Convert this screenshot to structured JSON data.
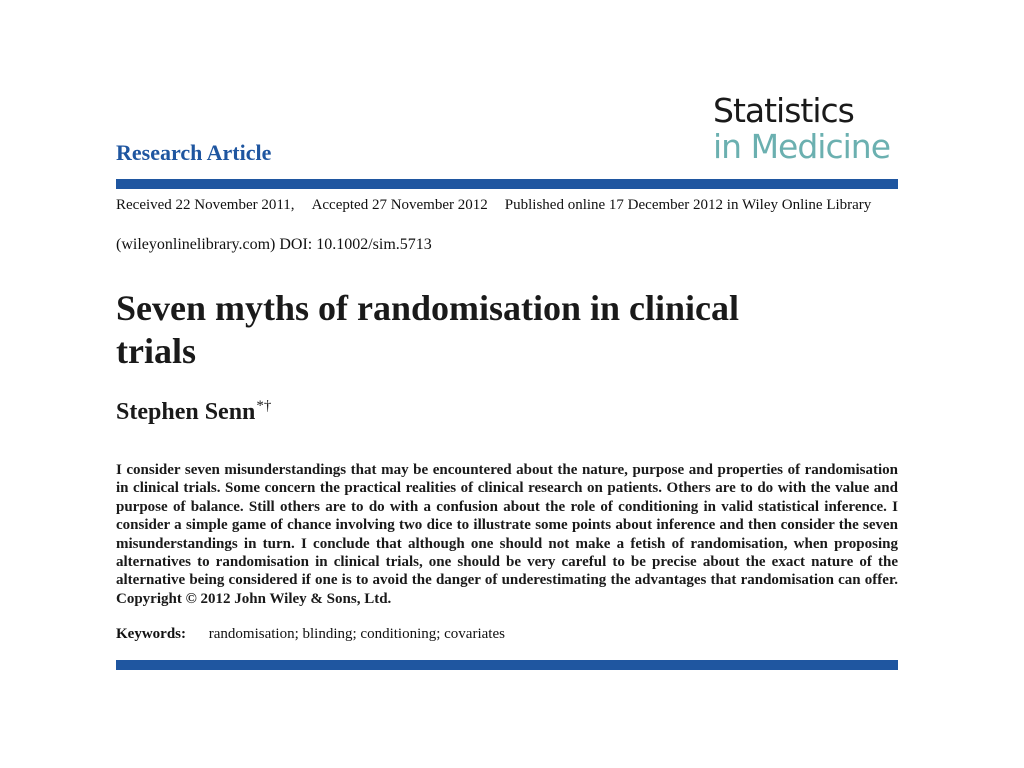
{
  "journal": {
    "logo_line1": "Statistics",
    "logo_line2": "in Medicine",
    "logo_color_dark": "#1a1a1a",
    "logo_color_teal": "#6bb0b0"
  },
  "header": {
    "article_type": "Research Article",
    "accent_color": "#1f56a0"
  },
  "publication": {
    "received": "Received 22 November 2011,",
    "accepted": "Accepted 27 November 2012",
    "published": "Published online 17 December 2012 in Wiley Online Library",
    "doi_line": "(wileyonlinelibrary.com) DOI: 10.1002/sim.5713"
  },
  "article": {
    "title": "Seven myths of randomisation in clinical trials",
    "author": "Stephen Senn",
    "author_marks": "*†",
    "abstract": "I consider seven misunderstandings that may be encountered about the nature, purpose and properties of randomisation in clinical trials. Some concern the practical realities of clinical research on patients. Others are to do with the value and purpose of balance. Still others are to do with a confusion about the role of conditioning in valid statistical inference. I consider a simple game of chance involving two dice to illustrate some points about inference and then consider the seven misunderstandings in turn. I conclude that although one should not make a fetish of randomisation, when proposing alternatives to randomisation in clinical trials, one should be very careful to be precise about the exact nature of the alternative being considered if one is to avoid the danger of underestimating the advantages that randomisation can offer. Copyright © 2012 John Wiley & Sons, Ltd.",
    "keywords_label": "Keywords:",
    "keywords": "randomisation; blinding; conditioning; covariates"
  }
}
